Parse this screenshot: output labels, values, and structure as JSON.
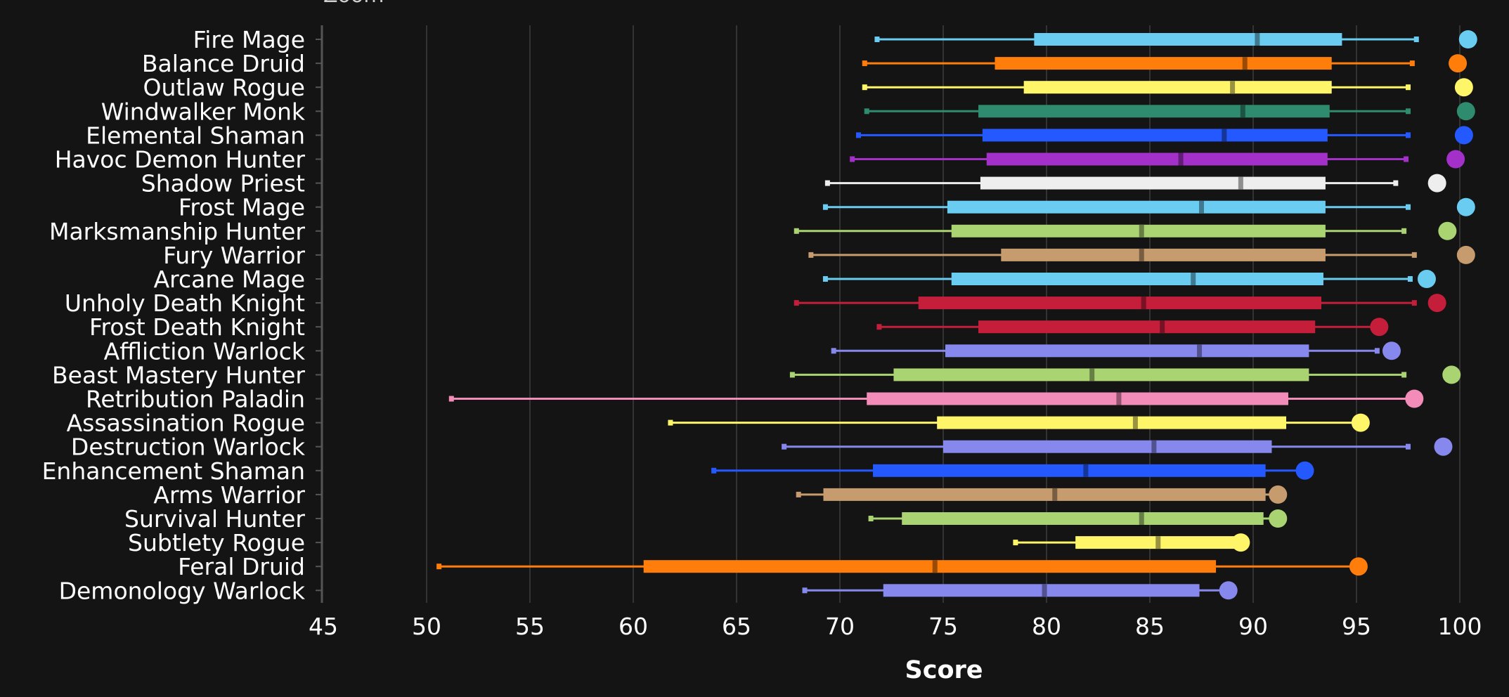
{
  "chart_data": {
    "type": "boxplot",
    "orientation": "horizontal",
    "xlabel": "Score",
    "ylabel": "",
    "partial_top_text": "Zoom",
    "xlim": [
      45,
      100
    ],
    "x_ticks": [
      45,
      50,
      55,
      60,
      65,
      70,
      75,
      80,
      85,
      90,
      95,
      100
    ],
    "grid": "vertical",
    "colors": {
      "background": "#141414",
      "grid": "#333333",
      "axis": "#555555",
      "text": "#ffffff"
    },
    "categories": [
      {
        "name": "Fire Mage",
        "color": "#69CCF0",
        "min": 71.8,
        "q1": 79.4,
        "median": 90.2,
        "q3": 94.3,
        "max": 97.9,
        "top": 100.4
      },
      {
        "name": "Balance Druid",
        "color": "#FF7D0A",
        "min": 71.2,
        "q1": 77.5,
        "median": 89.6,
        "q3": 93.8,
        "max": 97.7,
        "top": 99.9
      },
      {
        "name": "Outlaw Rogue",
        "color": "#FFF569",
        "min": 71.2,
        "q1": 78.9,
        "median": 89.0,
        "q3": 93.8,
        "max": 97.5,
        "top": 100.2
      },
      {
        "name": "Windwalker Monk",
        "color": "#2E8B6E",
        "min": 71.3,
        "q1": 76.7,
        "median": 89.5,
        "q3": 93.7,
        "max": 97.5,
        "top": 100.3
      },
      {
        "name": "Elemental Shaman",
        "color": "#2459FF",
        "min": 70.9,
        "q1": 76.9,
        "median": 88.6,
        "q3": 93.6,
        "max": 97.5,
        "top": 100.2
      },
      {
        "name": "Havoc Demon Hunter",
        "color": "#A330C9",
        "min": 70.6,
        "q1": 77.1,
        "median": 86.5,
        "q3": 93.6,
        "max": 97.4,
        "top": 99.8
      },
      {
        "name": "Shadow Priest",
        "color": "#EEEEEE",
        "min": 69.4,
        "q1": 76.8,
        "median": 89.4,
        "q3": 93.5,
        "max": 96.9,
        "top": 98.9
      },
      {
        "name": "Frost Mage",
        "color": "#69CCF0",
        "min": 69.3,
        "q1": 75.2,
        "median": 87.5,
        "q3": 93.5,
        "max": 97.5,
        "top": 100.3
      },
      {
        "name": "Marksmanship Hunter",
        "color": "#AAD372",
        "min": 67.9,
        "q1": 75.4,
        "median": 84.6,
        "q3": 93.5,
        "max": 97.3,
        "top": 99.4
      },
      {
        "name": "Fury Warrior",
        "color": "#C69B6D",
        "min": 68.6,
        "q1": 77.8,
        "median": 84.6,
        "q3": 93.5,
        "max": 97.8,
        "top": 100.3
      },
      {
        "name": "Arcane Mage",
        "color": "#69CCF0",
        "min": 69.3,
        "q1": 75.4,
        "median": 87.1,
        "q3": 93.4,
        "max": 97.6,
        "top": 98.4
      },
      {
        "name": "Unholy Death Knight",
        "color": "#C41E3A",
        "min": 67.9,
        "q1": 73.8,
        "median": 84.7,
        "q3": 93.3,
        "max": 97.8,
        "top": 98.9
      },
      {
        "name": "Frost Death Knight",
        "color": "#C41E3A",
        "min": 71.9,
        "q1": 76.7,
        "median": 85.6,
        "q3": 93.0,
        "max": 95.8,
        "top": 96.1
      },
      {
        "name": "Affliction Warlock",
        "color": "#8788EE",
        "min": 69.7,
        "q1": 75.1,
        "median": 87.4,
        "q3": 92.7,
        "max": 96.0,
        "top": 96.7
      },
      {
        "name": "Beast Mastery Hunter",
        "color": "#AAD372",
        "min": 67.7,
        "q1": 72.6,
        "median": 82.2,
        "q3": 92.7,
        "max": 97.3,
        "top": 99.6
      },
      {
        "name": "Retribution Paladin",
        "color": "#F48CBA",
        "min": 51.2,
        "q1": 71.3,
        "median": 83.5,
        "q3": 91.7,
        "max": 97.6,
        "top": 97.8
      },
      {
        "name": "Assassination Rogue",
        "color": "#FFF569",
        "min": 61.8,
        "q1": 74.7,
        "median": 84.3,
        "q3": 91.6,
        "max": 94.9,
        "top": 95.2
      },
      {
        "name": "Destruction Warlock",
        "color": "#8788EE",
        "min": 67.3,
        "q1": 75.0,
        "median": 85.2,
        "q3": 90.9,
        "max": 97.5,
        "top": 99.2
      },
      {
        "name": "Enhancement Shaman",
        "color": "#2459FF",
        "min": 63.9,
        "q1": 71.6,
        "median": 81.9,
        "q3": 90.6,
        "max": 92.3,
        "top": 92.5
      },
      {
        "name": "Arms Warrior",
        "color": "#C69B6D",
        "min": 68.0,
        "q1": 69.2,
        "median": 80.4,
        "q3": 90.6,
        "max": 90.9,
        "top": 91.2
      },
      {
        "name": "Survival Hunter",
        "color": "#AAD372",
        "min": 71.5,
        "q1": 73.0,
        "median": 84.6,
        "q3": 90.5,
        "max": 91.0,
        "top": 91.2
      },
      {
        "name": "Subtlety Rogue",
        "color": "#FFF569",
        "min": 78.5,
        "q1": 81.4,
        "median": 85.4,
        "q3": 89.3,
        "max": 89.5,
        "top": 89.4
      },
      {
        "name": "Feral Druid",
        "color": "#FF7D0A",
        "min": 50.6,
        "q1": 60.5,
        "median": 74.6,
        "q3": 88.2,
        "max": 95.0,
        "top": 95.1
      },
      {
        "name": "Demonology Warlock",
        "color": "#8788EE",
        "min": 68.3,
        "q1": 72.1,
        "median": 79.9,
        "q3": 87.4,
        "max": 88.5,
        "top": 88.8
      }
    ]
  }
}
